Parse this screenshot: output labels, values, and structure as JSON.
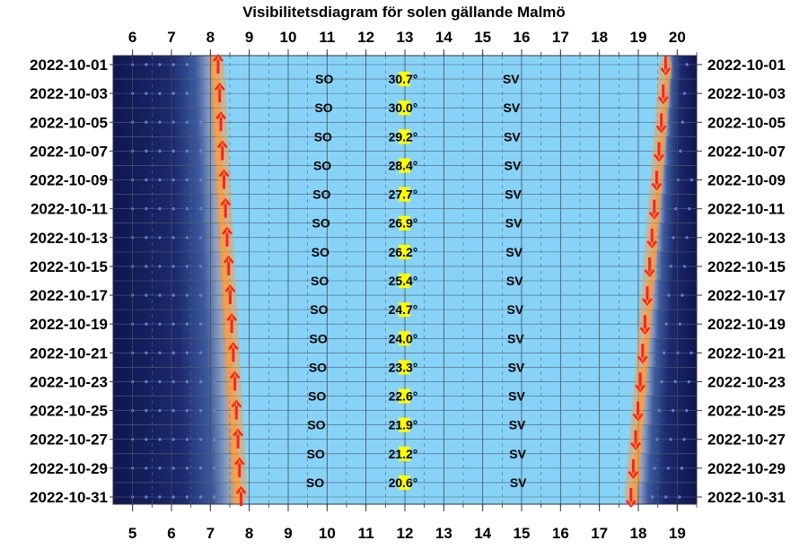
{
  "chart_data": {
    "type": "visibility-diagram",
    "title": "Visibilitetsdiagram för solen gällande Malmö",
    "top_hour_ticks": [
      "6",
      "7",
      "8",
      "9",
      "10",
      "11",
      "12",
      "13",
      "14",
      "15",
      "16",
      "17",
      "18",
      "19",
      "20"
    ],
    "bottom_hour_ticks": [
      "5",
      "6",
      "7",
      "8",
      "9",
      "10",
      "11",
      "12",
      "13",
      "14",
      "15",
      "16",
      "17",
      "18",
      "19"
    ],
    "dates": [
      "2022-10-01",
      "2022-10-03",
      "2022-10-05",
      "2022-10-07",
      "2022-10-09",
      "2022-10-11",
      "2022-10-13",
      "2022-10-15",
      "2022-10-17",
      "2022-10-19",
      "2022-10-21",
      "2022-10-23",
      "2022-10-25",
      "2022-10-27",
      "2022-10-29",
      "2022-10-31"
    ],
    "sunrise_hours": [
      7.2,
      7.24,
      7.27,
      7.31,
      7.35,
      7.39,
      7.43,
      7.47,
      7.51,
      7.55,
      7.59,
      7.63,
      7.67,
      7.71,
      7.75,
      7.79
    ],
    "sunset_hours": [
      18.7,
      18.64,
      18.59,
      18.53,
      18.47,
      18.41,
      18.35,
      18.29,
      18.23,
      18.17,
      18.11,
      18.05,
      17.99,
      17.93,
      17.87,
      17.81
    ],
    "max_elevation_labels": [
      "30.7°",
      "30.0°",
      "29.2°",
      "28.4°",
      "27.7°",
      "26.9°",
      "26.2°",
      "25.4°",
      "24.7°",
      "24.0°",
      "23.3°",
      "22.6°",
      "21.9°",
      "21.2°",
      "20.6°"
    ],
    "max_elevation_values": [
      30.7,
      30.0,
      29.2,
      28.4,
      27.7,
      26.9,
      26.2,
      25.4,
      24.7,
      24.0,
      23.3,
      22.6,
      21.9,
      21.2,
      20.6
    ],
    "southeast_label": "SO",
    "southwest_label": "SV",
    "colors": {
      "day": "#87d3f8",
      "night": "#0f1550",
      "twilight": "#3c5a9e",
      "sun_glow": "#f5a04a",
      "arrow": "#ff2020",
      "arrow_head": "#ffd400",
      "elevation_highlight": "#ffff00",
      "grid": "#555555"
    }
  }
}
